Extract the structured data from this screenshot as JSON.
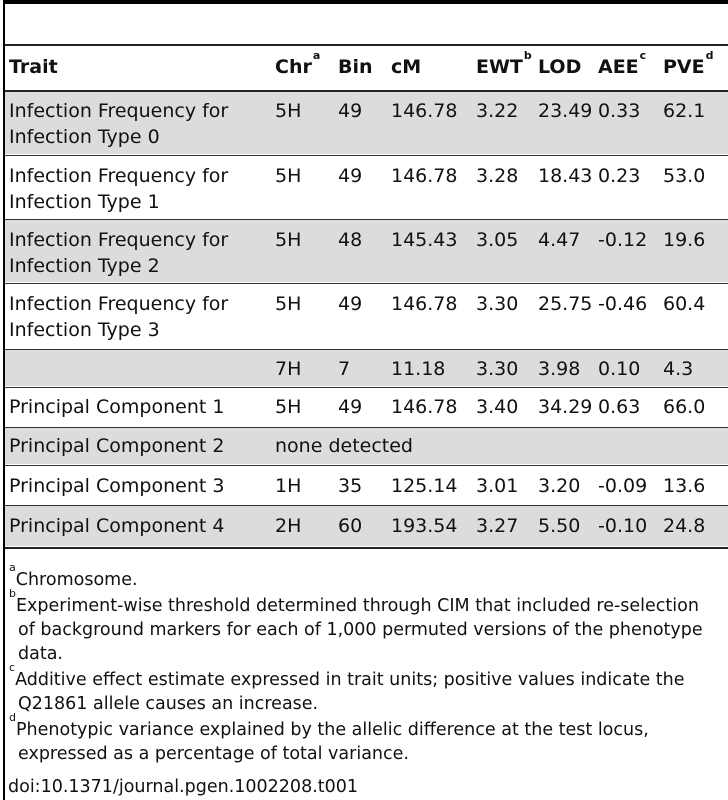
{
  "table": {
    "headers": {
      "trait": "Trait",
      "chr": "Chr",
      "chr_sup": "a",
      "bin": "Bin",
      "cm": "cM",
      "ewt": "EWT",
      "ewt_sup": "b",
      "lod": "LOD",
      "aee": "AEE",
      "aee_sup": "c",
      "pve": "PVE",
      "pve_sup": "d"
    },
    "rows": [
      {
        "trait_line1": "Infection Frequency for",
        "trait_line2": "Infection Type 0",
        "chr": "5H",
        "bin": "49",
        "cm": "146.78",
        "ewt": "3.22",
        "lod": "23.49",
        "aee": "0.33",
        "pve": "62.1"
      },
      {
        "trait_line1": "Infection Frequency for",
        "trait_line2": "Infection Type 1",
        "chr": "5H",
        "bin": "49",
        "cm": "146.78",
        "ewt": "3.28",
        "lod": "18.43",
        "aee": "0.23",
        "pve": "53.0"
      },
      {
        "trait_line1": "Infection Frequency for",
        "trait_line2": "Infection Type 2",
        "chr": "5H",
        "bin": "48",
        "cm": "145.43",
        "ewt": "3.05",
        "lod": "4.47",
        "aee": "-0.12",
        "pve": "19.6"
      },
      {
        "trait_line1": "Infection Frequency for",
        "trait_line2": "Infection Type 3",
        "chr": "5H",
        "bin": "49",
        "cm": "146.78",
        "ewt": "3.30",
        "lod": "25.75",
        "aee": "-0.46",
        "pve": "60.4"
      },
      {
        "trait_line1": "",
        "chr": "7H",
        "bin": "7",
        "cm": "11.18",
        "ewt": "3.30",
        "lod": "3.98",
        "aee": "0.10",
        "pve": "4.3"
      },
      {
        "trait_line1": "Principal Component 1",
        "chr": "5H",
        "bin": "49",
        "cm": "146.78",
        "ewt": "3.40",
        "lod": "34.29",
        "aee": "0.63",
        "pve": "66.0"
      },
      {
        "trait_line1": "Principal Component 2",
        "chr": "none detected"
      },
      {
        "trait_line1": "Principal Component 3",
        "chr": "1H",
        "bin": "35",
        "cm": "125.14",
        "ewt": "3.01",
        "lod": "3.20",
        "aee": "-0.09",
        "pve": "13.6"
      },
      {
        "trait_line1": "Principal Component 4",
        "chr": "2H",
        "bin": "60",
        "cm": "193.54",
        "ewt": "3.27",
        "lod": "5.50",
        "aee": "-0.10",
        "pve": "24.8"
      }
    ]
  },
  "footnotes": [
    {
      "mark": "a",
      "line1": "Chromosome."
    },
    {
      "mark": "b",
      "line1": "Experiment-wise threshold determined through CIM that included re-selection",
      "line2": "of background markers for each of 1,000 permuted versions of the phenotype",
      "line3": "data."
    },
    {
      "mark": "c",
      "line1": "Additive effect estimate expressed in trait units; positive values indicate the",
      "line2": "Q21861 allele causes an increase."
    },
    {
      "mark": "d",
      "line1": "Phenotypic variance explained by the allelic difference at the test locus,",
      "line2": "expressed as a percentage of total variance."
    }
  ],
  "doi": "doi:10.1371/journal.pgen.1002208.t001"
}
